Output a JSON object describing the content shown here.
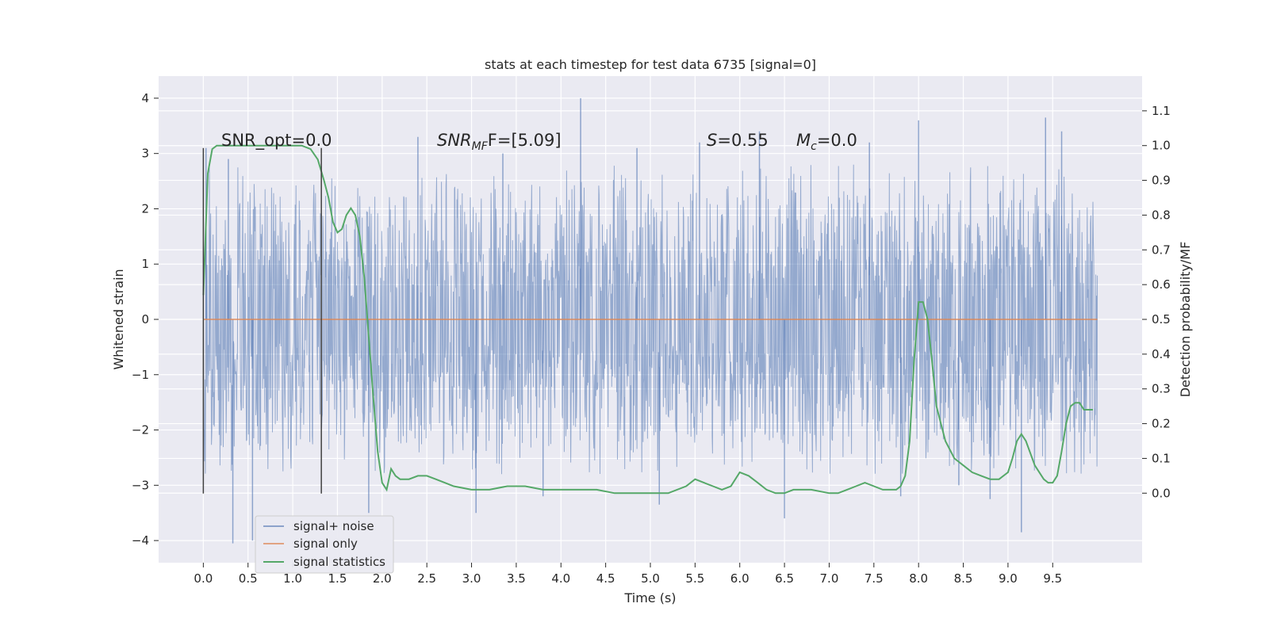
{
  "colors": {
    "background": "#eaeaf2",
    "grid": "#ffffff",
    "noise": "#4c72b0",
    "signal_only": "#dd8452",
    "statistics": "#55a868",
    "markers": "#404040",
    "text": "#262626"
  },
  "chart_data": {
    "type": "line",
    "title": "stats at each timestep for test data 6735 [signal=0]",
    "xlabel": "Time (s)",
    "ylabel_left": "Whitened strain",
    "ylabel_right": "Detection probability/MF",
    "xlim": [
      -0.5,
      10.5
    ],
    "ylim_left": [
      -4.4,
      4.4
    ],
    "ylim_right": [
      -0.2,
      1.2
    ],
    "x_ticks": [
      "0.0",
      "0.5",
      "1.0",
      "1.5",
      "2.0",
      "2.5",
      "3.0",
      "3.5",
      "4.0",
      "4.5",
      "5.0",
      "5.5",
      "6.0",
      "6.5",
      "7.0",
      "7.5",
      "8.0",
      "8.5",
      "9.0",
      "9.5"
    ],
    "y_ticks_left": [
      "−4",
      "−3",
      "−2",
      "−1",
      "0",
      "1",
      "2",
      "3",
      "4"
    ],
    "y_ticks_right": [
      "0.0",
      "0.1",
      "0.2",
      "0.3",
      "0.4",
      "0.5",
      "0.6",
      "0.7",
      "0.8",
      "0.9",
      "1.0",
      "1.1"
    ],
    "grid": true,
    "legend_position": "lower-left",
    "annotations": {
      "snr_opt": "SNR_opt=0.0",
      "snr_mf_main": "SNR",
      "snr_mf_sub": "MF",
      "snr_mf_rest": "F=[5.09]",
      "s_main": "S",
      "s_rest": "=0.55",
      "mc_main": "M",
      "mc_sub": "c",
      "mc_rest": "=0.0"
    },
    "markers_x": [
      0.0,
      1.32
    ],
    "series": [
      {
        "name": "signal+ noise",
        "x_range": [
          0.0,
          10.0
        ],
        "envelope": {
          "core_amplitude": 1.25,
          "typical_peak": 2.3,
          "peaks": [
            [
              0.03,
              3.1
            ],
            [
              0.28,
              2.9
            ],
            [
              0.55,
              -4.0
            ],
            [
              0.33,
              -4.05
            ],
            [
              1.85,
              -3.5
            ],
            [
              2.4,
              3.3
            ],
            [
              3.05,
              -3.5
            ],
            [
              3.35,
              3.0
            ],
            [
              3.8,
              -3.2
            ],
            [
              4.22,
              4.0
            ],
            [
              4.85,
              3.1
            ],
            [
              5.1,
              -3.35
            ],
            [
              5.55,
              3.2
            ],
            [
              6.22,
              3.4
            ],
            [
              6.5,
              -3.6
            ],
            [
              7.45,
              3.2
            ],
            [
              7.8,
              -3.2
            ],
            [
              8.0,
              3.6
            ],
            [
              8.45,
              -3.0
            ],
            [
              8.8,
              -3.25
            ],
            [
              9.15,
              -3.85
            ],
            [
              9.42,
              3.65
            ],
            [
              9.6,
              3.4
            ]
          ]
        }
      },
      {
        "name": "signal only",
        "x": [
          0.0,
          10.0
        ],
        "values": [
          0.0,
          0.0
        ]
      },
      {
        "name": "signal statistics",
        "x": [
          0.0,
          0.05,
          0.1,
          0.15,
          0.2,
          0.3,
          0.5,
          0.7,
          0.9,
          1.0,
          1.1,
          1.2,
          1.28,
          1.35,
          1.4,
          1.45,
          1.5,
          1.55,
          1.6,
          1.65,
          1.7,
          1.75,
          1.8,
          1.85,
          1.9,
          1.95,
          2.0,
          2.05,
          2.1,
          2.15,
          2.2,
          2.3,
          2.4,
          2.5,
          2.6,
          2.7,
          2.8,
          3.0,
          3.2,
          3.4,
          3.6,
          3.8,
          4.0,
          4.2,
          4.4,
          4.6,
          4.8,
          5.0,
          5.2,
          5.4,
          5.5,
          5.6,
          5.7,
          5.8,
          5.9,
          6.0,
          6.1,
          6.2,
          6.3,
          6.4,
          6.5,
          6.6,
          6.8,
          7.0,
          7.1,
          7.2,
          7.3,
          7.4,
          7.5,
          7.6,
          7.7,
          7.75,
          7.8,
          7.85,
          7.9,
          7.95,
          8.0,
          8.05,
          8.1,
          8.15,
          8.2,
          8.3,
          8.4,
          8.5,
          8.6,
          8.7,
          8.8,
          8.9,
          9.0,
          9.05,
          9.1,
          9.15,
          9.2,
          9.3,
          9.4,
          9.45,
          9.5,
          9.55,
          9.6,
          9.65,
          9.7,
          9.75,
          9.8,
          9.85,
          9.9,
          9.95
        ],
        "values": [
          0.57,
          0.92,
          0.99,
          1.0,
          1.0,
          1.0,
          1.0,
          1.0,
          1.0,
          1.0,
          1.0,
          0.99,
          0.96,
          0.9,
          0.85,
          0.78,
          0.75,
          0.76,
          0.8,
          0.82,
          0.8,
          0.74,
          0.62,
          0.45,
          0.28,
          0.12,
          0.03,
          0.01,
          0.07,
          0.05,
          0.04,
          0.04,
          0.05,
          0.05,
          0.04,
          0.03,
          0.02,
          0.01,
          0.01,
          0.02,
          0.02,
          0.01,
          0.01,
          0.01,
          0.01,
          0.0,
          0.0,
          0.0,
          0.0,
          0.02,
          0.04,
          0.03,
          0.02,
          0.01,
          0.02,
          0.06,
          0.05,
          0.03,
          0.01,
          0.0,
          0.0,
          0.01,
          0.01,
          0.0,
          0.0,
          0.01,
          0.02,
          0.03,
          0.02,
          0.01,
          0.01,
          0.01,
          0.02,
          0.05,
          0.15,
          0.38,
          0.55,
          0.55,
          0.5,
          0.38,
          0.25,
          0.15,
          0.1,
          0.08,
          0.06,
          0.05,
          0.04,
          0.04,
          0.06,
          0.1,
          0.15,
          0.17,
          0.15,
          0.08,
          0.04,
          0.03,
          0.03,
          0.05,
          0.12,
          0.2,
          0.25,
          0.26,
          0.26,
          0.24,
          0.24,
          0.24
        ]
      }
    ]
  }
}
